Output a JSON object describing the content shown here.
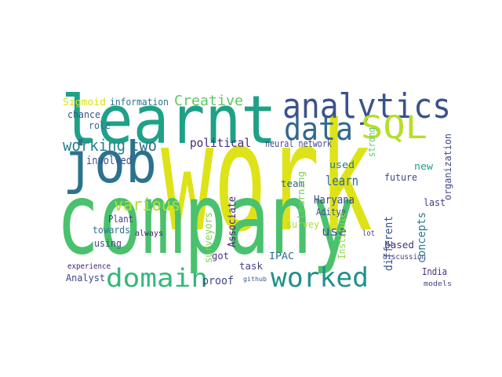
{
  "chart_data": {
    "type": "wordcloud",
    "words": [
      "work",
      "company",
      "learnt",
      "analytics",
      "job",
      "data",
      "SQL",
      "domain",
      "worked",
      "working",
      "two",
      "various",
      "Creative",
      "information",
      "Sigmoid",
      "chance",
      "role",
      "political",
      "neural network",
      "learn",
      "team",
      "Haryana",
      "Aditya",
      "use",
      "used",
      "future",
      "new",
      "last",
      "survey",
      "based",
      "discussion",
      "India",
      "models",
      "Analyst",
      "experience",
      "proof",
      "task",
      "IPAC",
      "got",
      "towards",
      "using",
      "always",
      "Plant",
      "involved",
      "lot",
      "github",
      "strong",
      "Learning",
      "Institute",
      "different",
      "concepts",
      "organization",
      "Associate",
      "surveyors"
    ]
  }
}
